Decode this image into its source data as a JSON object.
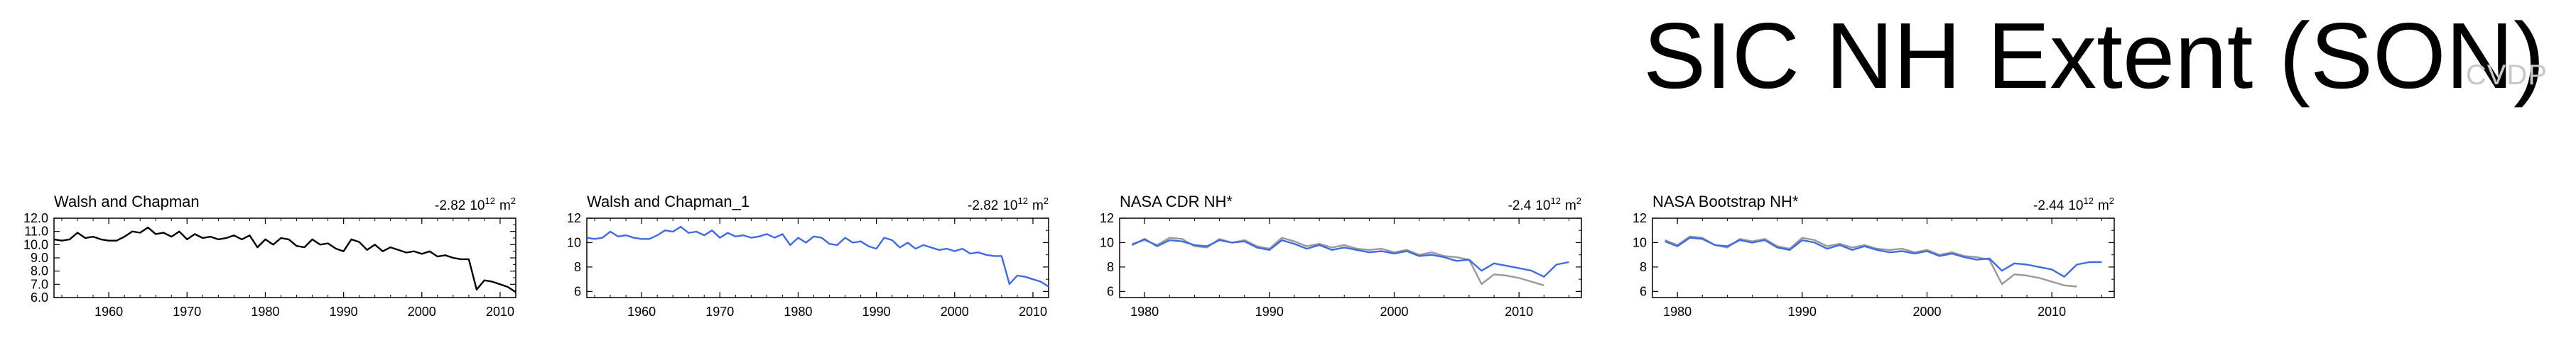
{
  "page": {
    "title": "SIC NH Extent (SON)",
    "watermark": "CVDP"
  },
  "chart_data": [
    {
      "type": "line",
      "title": "Walsh and Chapman",
      "trend_value": "-2.82",
      "trend_unit": "10",
      "trend_exp": "12",
      "trend_unit2": "m",
      "trend_exp2": "2",
      "xlim": [
        1953,
        2012
      ],
      "ylim": [
        6.0,
        12.0
      ],
      "yticks": [
        6.0,
        7.0,
        8.0,
        9.0,
        10.0,
        11.0,
        12.0
      ],
      "ytick_labels": [
        "6.0",
        "7.0",
        "8.0",
        "9.0",
        "10.0",
        "11.0",
        "12.0"
      ],
      "xticks": [
        1960,
        1970,
        1980,
        1990,
        2000,
        2010
      ],
      "xtick_labels": [
        "1960",
        "1970",
        "1980",
        "1990",
        "2000",
        "2010"
      ],
      "series": [
        {
          "color": "#000000",
          "x": [
            1953,
            1954,
            1955,
            1956,
            1957,
            1958,
            1959,
            1960,
            1961,
            1962,
            1963,
            1964,
            1965,
            1966,
            1967,
            1968,
            1969,
            1970,
            1971,
            1972,
            1973,
            1974,
            1975,
            1976,
            1977,
            1978,
            1979,
            1980,
            1981,
            1982,
            1983,
            1984,
            1985,
            1986,
            1987,
            1988,
            1989,
            1990,
            1991,
            1992,
            1993,
            1994,
            1995,
            1996,
            1997,
            1998,
            1999,
            2000,
            2001,
            2002,
            2003,
            2004,
            2005,
            2006,
            2007,
            2008,
            2009,
            2010,
            2011,
            2012
          ],
          "y": [
            10.4,
            10.3,
            10.4,
            10.9,
            10.5,
            10.6,
            10.4,
            10.3,
            10.3,
            10.6,
            11.0,
            10.9,
            11.3,
            10.8,
            10.9,
            10.6,
            11.0,
            10.4,
            10.8,
            10.5,
            10.6,
            10.4,
            10.5,
            10.7,
            10.4,
            10.7,
            9.8,
            10.4,
            10.0,
            10.5,
            10.4,
            9.9,
            9.8,
            10.4,
            10.0,
            10.1,
            9.7,
            9.5,
            10.4,
            10.2,
            9.6,
            10.0,
            9.5,
            9.8,
            9.6,
            9.4,
            9.5,
            9.3,
            9.5,
            9.1,
            9.2,
            9.0,
            8.9,
            8.9,
            6.6,
            7.3,
            7.2,
            7.0,
            6.8,
            6.4
          ]
        }
      ]
    },
    {
      "type": "line",
      "title": "Walsh and Chapman_1",
      "trend_value": "-2.82",
      "trend_unit": "10",
      "trend_exp": "12",
      "trend_unit2": "m",
      "trend_exp2": "2",
      "xlim": [
        1953,
        2012
      ],
      "ylim": [
        5.5,
        12.0
      ],
      "yticks": [
        6,
        8,
        10,
        12
      ],
      "ytick_labels": [
        "6",
        "8",
        "10",
        "12"
      ],
      "xticks": [
        1960,
        1970,
        1980,
        1990,
        2000,
        2010
      ],
      "xtick_labels": [
        "1960",
        "1970",
        "1980",
        "1990",
        "2000",
        "2010"
      ],
      "series": [
        {
          "color": "#4169e1",
          "x": [
            1953,
            1954,
            1955,
            1956,
            1957,
            1958,
            1959,
            1960,
            1961,
            1962,
            1963,
            1964,
            1965,
            1966,
            1967,
            1968,
            1969,
            1970,
            1971,
            1972,
            1973,
            1974,
            1975,
            1976,
            1977,
            1978,
            1979,
            1980,
            1981,
            1982,
            1983,
            1984,
            1985,
            1986,
            1987,
            1988,
            1989,
            1990,
            1991,
            1992,
            1993,
            1994,
            1995,
            1996,
            1997,
            1998,
            1999,
            2000,
            2001,
            2002,
            2003,
            2004,
            2005,
            2006,
            2007,
            2008,
            2009,
            2010,
            2011,
            2012
          ],
          "y": [
            10.4,
            10.3,
            10.4,
            10.9,
            10.5,
            10.6,
            10.4,
            10.3,
            10.3,
            10.6,
            11.0,
            10.9,
            11.3,
            10.8,
            10.9,
            10.6,
            11.0,
            10.4,
            10.8,
            10.5,
            10.6,
            10.4,
            10.5,
            10.7,
            10.4,
            10.7,
            9.8,
            10.4,
            10.0,
            10.5,
            10.4,
            9.9,
            9.8,
            10.4,
            10.0,
            10.1,
            9.7,
            9.5,
            10.4,
            10.2,
            9.6,
            10.0,
            9.5,
            9.8,
            9.6,
            9.4,
            9.5,
            9.3,
            9.5,
            9.1,
            9.2,
            9.0,
            8.9,
            8.9,
            6.6,
            7.3,
            7.2,
            7.0,
            6.8,
            6.4
          ]
        }
      ]
    },
    {
      "type": "line",
      "title": "NASA CDR NH*",
      "trend_value": "-2.4",
      "trend_unit": "10",
      "trend_exp": "12",
      "trend_unit2": "m",
      "trend_exp2": "2",
      "xlim": [
        1978,
        2015
      ],
      "ylim": [
        5.5,
        12.0
      ],
      "yticks": [
        6,
        8,
        10,
        12
      ],
      "ytick_labels": [
        "6",
        "8",
        "10",
        "12"
      ],
      "xticks": [
        1980,
        1990,
        2000,
        2010
      ],
      "xtick_labels": [
        "1980",
        "1990",
        "2000",
        "2010"
      ],
      "series": [
        {
          "color": "#4169e1",
          "x": [
            1979,
            1980,
            1981,
            1982,
            1983,
            1984,
            1985,
            1986,
            1987,
            1988,
            1989,
            1990,
            1991,
            1992,
            1993,
            1994,
            1995,
            1996,
            1997,
            1998,
            1999,
            2000,
            2001,
            2002,
            2003,
            2004,
            2005,
            2006,
            2007,
            2008,
            2009,
            2010,
            2011,
            2012,
            2013,
            2014
          ],
          "y": [
            9.8,
            10.3,
            9.7,
            10.2,
            10.1,
            9.8,
            9.7,
            10.2,
            10.0,
            10.1,
            9.6,
            9.4,
            10.2,
            9.9,
            9.5,
            9.8,
            9.4,
            9.6,
            9.4,
            9.2,
            9.3,
            9.1,
            9.3,
            8.9,
            9.0,
            8.8,
            8.5,
            8.6,
            7.7,
            8.3,
            8.1,
            7.9,
            7.7,
            7.2,
            8.2,
            8.4
          ]
        },
        {
          "color": "#999999",
          "x": [
            1979,
            1980,
            1981,
            1982,
            1983,
            1984,
            1985,
            1986,
            1987,
            1988,
            1989,
            1990,
            1991,
            1992,
            1993,
            1994,
            1995,
            1996,
            1997,
            1998,
            1999,
            2000,
            2001,
            2002,
            2003,
            2004,
            2005,
            2006,
            2007,
            2008,
            2009,
            2010,
            2011,
            2012
          ],
          "y": [
            9.9,
            10.2,
            9.8,
            10.4,
            10.3,
            9.7,
            9.6,
            10.3,
            10.0,
            10.2,
            9.7,
            9.5,
            10.4,
            10.1,
            9.7,
            9.9,
            9.6,
            9.8,
            9.5,
            9.4,
            9.5,
            9.2,
            9.4,
            9.0,
            9.2,
            8.9,
            8.8,
            8.6,
            6.6,
            7.4,
            7.3,
            7.1,
            6.8,
            6.5
          ]
        }
      ]
    },
    {
      "type": "line",
      "title": "NASA Bootstrap NH*",
      "trend_value": "-2.44",
      "trend_unit": "10",
      "trend_exp": "12",
      "trend_unit2": "m",
      "trend_exp2": "2",
      "xlim": [
        1978,
        2015
      ],
      "ylim": [
        5.5,
        12.0
      ],
      "yticks": [
        6,
        8,
        10,
        12
      ],
      "ytick_labels": [
        "6",
        "8",
        "10",
        "12"
      ],
      "xticks": [
        1980,
        1990,
        2000,
        2010
      ],
      "xtick_labels": [
        "1980",
        "1990",
        "2000",
        "2010"
      ],
      "series": [
        {
          "color": "#4169e1",
          "x": [
            1979,
            1980,
            1981,
            1982,
            1983,
            1984,
            1985,
            1986,
            1987,
            1988,
            1989,
            1990,
            1991,
            1992,
            1993,
            1994,
            1995,
            1996,
            1997,
            1998,
            1999,
            2000,
            2001,
            2002,
            2003,
            2004,
            2005,
            2006,
            2007,
            2008,
            2009,
            2010,
            2011,
            2012,
            2013,
            2014
          ],
          "y": [
            10.1,
            9.7,
            10.4,
            10.3,
            9.8,
            9.7,
            10.2,
            10.0,
            10.2,
            9.6,
            9.4,
            10.2,
            10.0,
            9.5,
            9.8,
            9.4,
            9.7,
            9.4,
            9.2,
            9.3,
            9.1,
            9.3,
            8.9,
            9.1,
            8.8,
            8.6,
            8.7,
            7.7,
            8.3,
            8.2,
            8.0,
            7.8,
            7.2,
            8.2,
            8.4,
            8.4
          ]
        },
        {
          "color": "#999999",
          "x": [
            1979,
            1980,
            1981,
            1982,
            1983,
            1984,
            1985,
            1986,
            1987,
            1988,
            1989,
            1990,
            1991,
            1992,
            1993,
            1994,
            1995,
            1996,
            1997,
            1998,
            1999,
            2000,
            2001,
            2002,
            2003,
            2004,
            2005,
            2006,
            2007,
            2008,
            2009,
            2010,
            2011,
            2012
          ],
          "y": [
            10.2,
            9.8,
            10.5,
            10.4,
            9.8,
            9.6,
            10.3,
            10.1,
            10.3,
            9.7,
            9.5,
            10.4,
            10.2,
            9.7,
            9.9,
            9.6,
            9.8,
            9.5,
            9.4,
            9.5,
            9.2,
            9.4,
            9.0,
            9.2,
            8.9,
            8.8,
            8.6,
            6.6,
            7.4,
            7.3,
            7.1,
            6.8,
            6.5,
            6.4
          ]
        }
      ]
    }
  ]
}
